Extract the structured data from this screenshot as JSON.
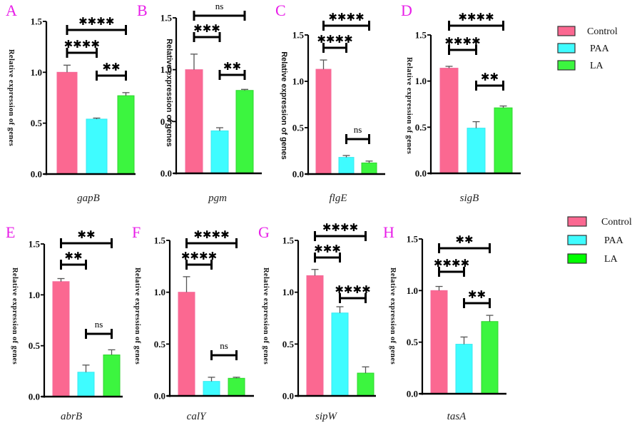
{
  "chart_data": [
    {
      "type": "bar",
      "panel": "A",
      "title": "",
      "xlabel": "gapB",
      "ylabel": "Relative expression of genes",
      "ylim": [
        0,
        1.5
      ],
      "yticks": [
        "0.0",
        "0.5",
        "1.0",
        "1.5"
      ],
      "categories": [
        "Control",
        "PAA",
        "LA"
      ],
      "values": [
        1.0,
        0.54,
        0.77
      ],
      "errors": [
        0.07,
        0.01,
        0.03
      ],
      "significance": [
        {
          "from": "Control",
          "to": "LA",
          "label": "****"
        },
        {
          "from": "Control",
          "to": "PAA",
          "label": "****"
        },
        {
          "from": "PAA",
          "to": "LA",
          "label": "**"
        }
      ]
    },
    {
      "type": "bar",
      "panel": "B",
      "title": "",
      "xlabel": "pgm",
      "ylabel": "Relative expression of genes",
      "ylim": [
        0,
        1.5
      ],
      "yticks": [
        "0.0",
        "0.5",
        "1.0",
        "1.5"
      ],
      "categories": [
        "Control",
        "PAA",
        "LA"
      ],
      "values": [
        1.0,
        0.41,
        0.8
      ],
      "errors": [
        0.15,
        0.03,
        0.01
      ],
      "significance": [
        {
          "from": "Control",
          "to": "LA",
          "label": "ns"
        },
        {
          "from": "Control",
          "to": "PAA",
          "label": "***"
        },
        {
          "from": "PAA",
          "to": "LA",
          "label": "**"
        }
      ]
    },
    {
      "type": "bar",
      "panel": "C",
      "title": "",
      "xlabel": "flgE",
      "ylabel": "Relative expression of genes",
      "ylim": [
        0,
        1.5
      ],
      "yticks": [
        "0.0",
        "0.5",
        "1.0",
        "1.5"
      ],
      "categories": [
        "Control",
        "PAA",
        "LA"
      ],
      "values": [
        1.13,
        0.18,
        0.12
      ],
      "errors": [
        0.1,
        0.02,
        0.02
      ],
      "significance": [
        {
          "from": "Control",
          "to": "LA",
          "label": "****"
        },
        {
          "from": "Control",
          "to": "PAA",
          "label": "****"
        },
        {
          "from": "PAA",
          "to": "LA",
          "label": "ns"
        }
      ]
    },
    {
      "type": "bar",
      "panel": "D",
      "title": "",
      "xlabel": "sigB",
      "ylabel": "Relative expression of genes",
      "ylim": [
        0,
        1.5
      ],
      "yticks": [
        "0.0",
        "0.5",
        "1.0",
        "1.5"
      ],
      "categories": [
        "Control",
        "PAA",
        "LA"
      ],
      "values": [
        1.14,
        0.49,
        0.71
      ],
      "errors": [
        0.02,
        0.07,
        0.02
      ],
      "significance": [
        {
          "from": "Control",
          "to": "LA",
          "label": "****"
        },
        {
          "from": "Control",
          "to": "PAA",
          "label": "****"
        },
        {
          "from": "PAA",
          "to": "LA",
          "label": "**"
        }
      ]
    },
    {
      "type": "bar",
      "panel": "E",
      "title": "",
      "xlabel": "abrB",
      "ylabel": "Relative expression of genes",
      "ylim": [
        0,
        1.5
      ],
      "yticks": [
        "0.0",
        "0.5",
        "1.0",
        "1.5"
      ],
      "categories": [
        "Control",
        "PAA",
        "LA"
      ],
      "values": [
        1.13,
        0.24,
        0.41
      ],
      "errors": [
        0.03,
        0.07,
        0.05
      ],
      "significance": [
        {
          "from": "Control",
          "to": "LA",
          "label": "**"
        },
        {
          "from": "Control",
          "to": "PAA",
          "label": "**"
        },
        {
          "from": "PAA",
          "to": "LA",
          "label": "ns"
        }
      ]
    },
    {
      "type": "bar",
      "panel": "F",
      "title": "",
      "xlabel": "calY",
      "ylabel": "Relative expression of genes",
      "ylim": [
        0,
        1.5
      ],
      "yticks": [
        "0.0",
        "0.5",
        "1.0",
        "1.5"
      ],
      "categories": [
        "Control",
        "PAA",
        "LA"
      ],
      "values": [
        1.0,
        0.14,
        0.17
      ],
      "errors": [
        0.15,
        0.04,
        0.01
      ],
      "significance": [
        {
          "from": "Control",
          "to": "LA",
          "label": "****"
        },
        {
          "from": "Control",
          "to": "PAA",
          "label": "****"
        },
        {
          "from": "PAA",
          "to": "LA",
          "label": "ns"
        }
      ]
    },
    {
      "type": "bar",
      "panel": "G",
      "title": "",
      "xlabel": "sipW",
      "ylabel": "Relative expression of genes",
      "ylim": [
        0,
        1.5
      ],
      "yticks": [
        "0.0",
        "0.5",
        "1.0",
        "1.5"
      ],
      "categories": [
        "Control",
        "PAA",
        "LA"
      ],
      "values": [
        1.16,
        0.8,
        0.22
      ],
      "errors": [
        0.06,
        0.06,
        0.06
      ],
      "significance": [
        {
          "from": "Control",
          "to": "LA",
          "label": "****"
        },
        {
          "from": "Control",
          "to": "PAA",
          "label": "***"
        },
        {
          "from": "PAA",
          "to": "LA",
          "label": "****"
        }
      ]
    },
    {
      "type": "bar",
      "panel": "H",
      "title": "",
      "xlabel": "tasA",
      "ylabel": "Relative expression of genes",
      "ylim": [
        0,
        1.5
      ],
      "yticks": [
        "0.0",
        "0.5",
        "1.0",
        "1.5"
      ],
      "categories": [
        "Control",
        "PAA",
        "LA"
      ],
      "values": [
        1.0,
        0.48,
        0.7
      ],
      "errors": [
        0.04,
        0.07,
        0.06
      ],
      "significance": [
        {
          "from": "Control",
          "to": "LA",
          "label": "**"
        },
        {
          "from": "Control",
          "to": "PAA",
          "label": "****"
        },
        {
          "from": "PAA",
          "to": "LA",
          "label": "**"
        }
      ]
    }
  ],
  "legends": [
    {
      "entries": [
        {
          "label": "Control",
          "color": "#fb6891"
        },
        {
          "label": "PAA",
          "color": "#3ffcff"
        },
        {
          "label": "LA",
          "color": "#3cf53f"
        }
      ]
    },
    {
      "entries": [
        {
          "label": "Control",
          "color": "#fb6891"
        },
        {
          "label": "PAA",
          "color": "#3ffcff"
        },
        {
          "label": "LA",
          "color": "#00ff00"
        }
      ]
    }
  ],
  "colors": {
    "control": "#fb6891",
    "paa": "#3ffcff",
    "la": "#3cf53f",
    "panel_letter": "#e81ee8",
    "axis": "#000000"
  }
}
